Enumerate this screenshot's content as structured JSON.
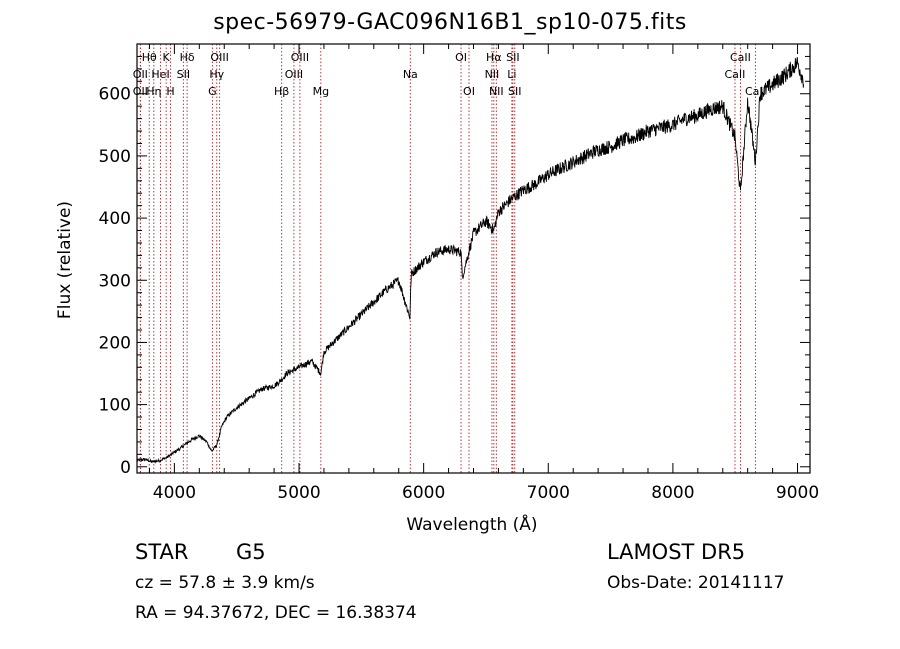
{
  "header": {
    "title": "spec-56979-GAC096N16B1_sp10-075.fits"
  },
  "info": {
    "object_class": "STAR",
    "subclass": "G5",
    "survey": "LAMOST DR5",
    "redshift": "cz = 57.8 ± 3.9 km/s",
    "obs_date": "Obs-Date: 20141117",
    "coords": "RA =  94.37672, DEC =  16.38374"
  },
  "colors": {
    "line": "#000000",
    "marker_lines": "#b22222",
    "axes": "#000000"
  },
  "chart_data": {
    "type": "line",
    "title": "spec-56979-GAC096N16B1_sp10-075.fits",
    "xlabel": "Wavelength (Å)",
    "ylabel": "Flux (relative)",
    "xlim": [
      3700,
      9100
    ],
    "ylim": [
      -10,
      680
    ],
    "xticks": [
      4000,
      5000,
      6000,
      7000,
      8000,
      9000
    ],
    "xtick_labels": [
      "4000",
      "5000",
      "6000",
      "7000",
      "8000",
      "9000"
    ],
    "yticks": [
      0,
      100,
      200,
      300,
      400,
      500,
      600
    ],
    "ytick_labels": [
      "0",
      "100",
      "200",
      "300",
      "400",
      "500",
      "600"
    ],
    "grid": false,
    "series": [
      {
        "x": [
          3700,
          3760,
          3820,
          3880,
          3940,
          3990,
          4050,
          4100,
          4150,
          4200,
          4260,
          4300,
          4340,
          4380,
          4420,
          4500,
          4600,
          4700,
          4800,
          4861,
          4900,
          5000,
          5100,
          5175,
          5200,
          5300,
          5400,
          5500,
          5600,
          5700,
          5800,
          5890,
          5900,
          6000,
          6100,
          6200,
          6300,
          6310,
          6400,
          6500,
          6563,
          6600,
          6700,
          6800,
          6900,
          7000,
          7100,
          7200,
          7300,
          7400,
          7500,
          7600,
          7700,
          7800,
          7900,
          8000,
          8100,
          8200,
          8300,
          8400,
          8498,
          8542,
          8600,
          8662,
          8700,
          8800,
          8900,
          8950,
          9000,
          9050
        ],
        "y": [
          10,
          12,
          8,
          10,
          15,
          22,
          30,
          38,
          45,
          50,
          40,
          25,
          35,
          65,
          80,
          95,
          110,
          125,
          130,
          140,
          150,
          160,
          170,
          150,
          185,
          205,
          225,
          245,
          265,
          285,
          300,
          240,
          310,
          330,
          345,
          350,
          345,
          305,
          375,
          395,
          380,
          410,
          430,
          445,
          455,
          470,
          480,
          490,
          500,
          510,
          515,
          525,
          530,
          540,
          545,
          550,
          560,
          565,
          575,
          580,
          530,
          440,
          590,
          490,
          600,
          615,
          630,
          640,
          650,
          620
        ]
      }
    ],
    "lines": [
      {
        "label": "Hθ",
        "x": 3798,
        "row": 0
      },
      {
        "label": "OII",
        "x": 3727,
        "row": 1
      },
      {
        "label": "OII",
        "x": 3727,
        "row": 2
      },
      {
        "label": "Hη",
        "x": 3835,
        "row": 2
      },
      {
        "label": "HeI",
        "x": 3889,
        "row": 1
      },
      {
        "label": "K",
        "x": 3934,
        "row": 0
      },
      {
        "label": "H",
        "x": 3969,
        "row": 2
      },
      {
        "label": "SII",
        "x": 4072,
        "row": 1
      },
      {
        "label": "Hδ",
        "x": 4102,
        "row": 0
      },
      {
        "label": "OIII",
        "x": 4363,
        "row": 0
      },
      {
        "label": "Hγ",
        "x": 4340,
        "row": 1
      },
      {
        "label": "G",
        "x": 4305,
        "row": 2
      },
      {
        "label": "Hβ",
        "x": 4861,
        "row": 2
      },
      {
        "label": "OIII",
        "x": 4959,
        "row": 1
      },
      {
        "label": "OIII",
        "x": 5007,
        "row": 0
      },
      {
        "label": "Mg",
        "x": 5175,
        "row": 2
      },
      {
        "label": "Na",
        "x": 5893,
        "row": 1
      },
      {
        "label": "OI",
        "x": 6300,
        "row": 0
      },
      {
        "label": "OI",
        "x": 6364,
        "row": 2
      },
      {
        "label": "Hα",
        "x": 6563,
        "row": 0
      },
      {
        "label": "NII",
        "x": 6548,
        "row": 1
      },
      {
        "label": "NII",
        "x": 6583,
        "row": 2
      },
      {
        "label": "SII",
        "x": 6716,
        "row": 0
      },
      {
        "label": "Li",
        "x": 6708,
        "row": 1
      },
      {
        "label": "SII",
        "x": 6731,
        "row": 2
      },
      {
        "label": "CaII",
        "x": 8542,
        "row": 0
      },
      {
        "label": "CaII",
        "x": 8498,
        "row": 1
      },
      {
        "label": "CaII",
        "x": 8662,
        "row": 2
      }
    ]
  }
}
